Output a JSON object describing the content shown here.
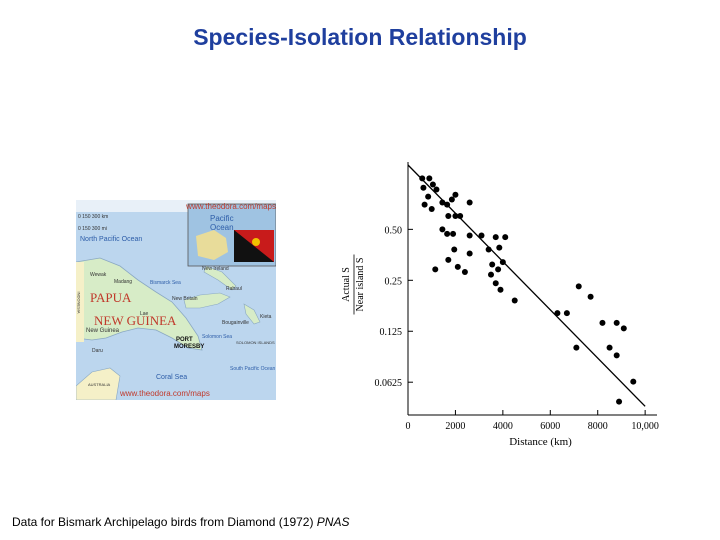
{
  "slide": {
    "title": "Species-Isolation Relationship",
    "caption_text": "Data for Bismark Archipelago birds from Diamond (1972) ",
    "caption_journal": "PNAS"
  },
  "map": {
    "url_top": "www.theodora.com/maps",
    "url_bottom": "www.theodora.com/maps",
    "scale_km": "0    150   300 km",
    "scale_mi": "0    150   300 mi",
    "north_pacific": "North Pacific Ocean",
    "inset_pacific": "Pacific",
    "inset_ocean": "Ocean",
    "country_line1": "PAPUA",
    "country_line2": "NEW GUINEA",
    "capital_line1": "PORT",
    "capital_line2": "MORESBY",
    "coral_sea": "Coral Sea",
    "solomon_sea": "Solomon Sea",
    "south_pacific": "South Pacific Ocean",
    "bismarck_sea": "Bismarck Sea",
    "new_ireland": "New Ireland",
    "new_britain": "New Britain",
    "bougainville": "Bougainville",
    "madang": "Madang",
    "lae": "Lae",
    "wewak": "Wewak",
    "new_guinea": "New Guinea",
    "daru": "Daru",
    "indonesia": "INDONESIA",
    "australia": "AUSTRALIA",
    "solomon_islands": "SOLOMON ISLANDS",
    "kieta": "Kieta",
    "rabaul": "Rabaul"
  },
  "chart_data": {
    "type": "scatter",
    "xlabel": "Distance (km)",
    "ylabel_numerator": "Actual S",
    "ylabel_denominator": "Near island S",
    "xlim": [
      0,
      10500
    ],
    "ylim": [
      0.04,
      1.25
    ],
    "y_scale": "log",
    "x_ticks": [
      0,
      2000,
      4000,
      6000,
      8000,
      10000
    ],
    "x_tick_labels": [
      "0",
      "2000",
      "4000",
      "6000",
      "8000",
      "10,000"
    ],
    "y_ticks": [
      0.5,
      0.25,
      0.125,
      0.0625
    ],
    "y_tick_labels": [
      "0.50",
      "0.25",
      "0.125",
      "0.0625"
    ],
    "grid": false,
    "points": [
      [
        600,
        1.0
      ],
      [
        900,
        1.0
      ],
      [
        650,
        0.88
      ],
      [
        1050,
        0.92
      ],
      [
        850,
        0.78
      ],
      [
        1200,
        0.86
      ],
      [
        700,
        0.7
      ],
      [
        1000,
        0.66
      ],
      [
        1450,
        0.72
      ],
      [
        1850,
        0.75
      ],
      [
        1650,
        0.7
      ],
      [
        2000,
        0.8
      ],
      [
        2600,
        0.72
      ],
      [
        1700,
        0.6
      ],
      [
        2000,
        0.6
      ],
      [
        2200,
        0.6
      ],
      [
        1450,
        0.5
      ],
      [
        1650,
        0.47
      ],
      [
        1900,
        0.47
      ],
      [
        2600,
        0.46
      ],
      [
        3100,
        0.46
      ],
      [
        1950,
        0.38
      ],
      [
        3700,
        0.45
      ],
      [
        4100,
        0.45
      ],
      [
        1700,
        0.33
      ],
      [
        2600,
        0.36
      ],
      [
        3400,
        0.38
      ],
      [
        3850,
        0.39
      ],
      [
        3550,
        0.31
      ],
      [
        2100,
        0.3
      ],
      [
        1150,
        0.29
      ],
      [
        3500,
        0.27
      ],
      [
        3800,
        0.29
      ],
      [
        4000,
        0.32
      ],
      [
        2400,
        0.28
      ],
      [
        3700,
        0.24
      ],
      [
        3900,
        0.22
      ],
      [
        4500,
        0.19
      ],
      [
        6300,
        0.16
      ],
      [
        6700,
        0.16
      ],
      [
        7700,
        0.2
      ],
      [
        7200,
        0.23
      ],
      [
        8200,
        0.14
      ],
      [
        8800,
        0.14
      ],
      [
        9100,
        0.13
      ],
      [
        7100,
        0.1
      ],
      [
        8500,
        0.1
      ],
      [
        8800,
        0.09
      ],
      [
        9500,
        0.063
      ],
      [
        8900,
        0.048
      ]
    ],
    "trendline": {
      "x": [
        0,
        10000
      ],
      "y": [
        1.2,
        0.045
      ]
    },
    "colors": {
      "points": "#000000",
      "axes": "#000000",
      "title": "#1f3f9e"
    }
  }
}
